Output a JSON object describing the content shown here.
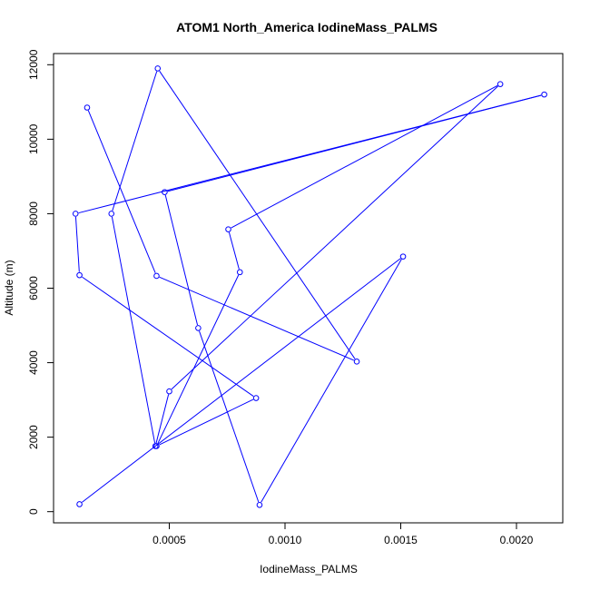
{
  "chart_data": {
    "type": "line",
    "title": "ATOM1 North_America IodineMass_PALMS",
    "xlabel": "IodineMass_PALMS",
    "ylabel": "Altitude (m)",
    "xlim": [
      0.0,
      0.0022
    ],
    "ylim": [
      -300,
      12300
    ],
    "xticks": [
      0.0005,
      0.001,
      0.0015,
      0.002
    ],
    "xtick_labels": [
      "0.0005",
      "0.0010",
      "0.0015",
      "0.0020"
    ],
    "yticks": [
      0,
      2000,
      4000,
      6000,
      8000,
      10000,
      12000
    ],
    "ytick_labels": [
      "0",
      "2000",
      "4000",
      "6000",
      "8000",
      "10000",
      "12000"
    ],
    "grid": false,
    "series": [
      {
        "color": "#0000ff",
        "marker": "open-circle",
        "points": [
          {
            "x": 0.000112,
            "y": 200
          },
          {
            "x": 0.00151,
            "y": 6850
          },
          {
            "x": 0.00089,
            "y": 180
          },
          {
            "x": 0.000625,
            "y": 4930
          },
          {
            "x": 0.00048,
            "y": 8580
          },
          {
            "x": 0.00212,
            "y": 11200
          },
          {
            "x": 9.5e-05,
            "y": 8000
          },
          {
            "x": 0.000112,
            "y": 6350
          },
          {
            "x": 0.000875,
            "y": 3050
          },
          {
            "x": 0.000445,
            "y": 1760
          },
          {
            "x": 0.000805,
            "y": 6430
          },
          {
            "x": 0.000755,
            "y": 7580
          },
          {
            "x": 0.00193,
            "y": 11480
          },
          {
            "x": 0.0005,
            "y": 3230
          },
          {
            "x": 0.00044,
            "y": 1760
          },
          {
            "x": 0.00025,
            "y": 8000
          },
          {
            "x": 0.00045,
            "y": 11900
          },
          {
            "x": 0.00131,
            "y": 4030
          },
          {
            "x": 0.000445,
            "y": 6330
          },
          {
            "x": 0.000145,
            "y": 10850
          }
        ]
      }
    ]
  }
}
